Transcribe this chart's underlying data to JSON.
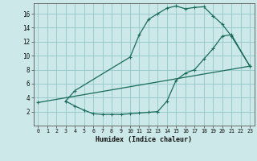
{
  "xlabel": "Humidex (Indice chaleur)",
  "bg_color": "#cce8e8",
  "grid_color": "#99cccc",
  "line_color": "#1a6b5a",
  "xlim": [
    -0.5,
    23.5
  ],
  "ylim": [
    0,
    17.5
  ],
  "xticks": [
    0,
    1,
    2,
    3,
    4,
    5,
    6,
    7,
    8,
    9,
    10,
    11,
    12,
    13,
    14,
    15,
    16,
    17,
    18,
    19,
    20,
    21,
    22,
    23
  ],
  "yticks": [
    2,
    4,
    6,
    8,
    10,
    12,
    14,
    16
  ],
  "line1_x": [
    3,
    4,
    10,
    11,
    12,
    13,
    14,
    15,
    16,
    17,
    18,
    19,
    20,
    21,
    23
  ],
  "line1_y": [
    3.5,
    5.0,
    9.8,
    13.0,
    15.2,
    16.0,
    16.8,
    17.1,
    16.7,
    16.9,
    17.0,
    15.7,
    14.5,
    12.8,
    8.5
  ],
  "line2_x": [
    0,
    23
  ],
  "line2_y": [
    3.3,
    8.5
  ],
  "line3_x": [
    3,
    4,
    5,
    6,
    7,
    8,
    9,
    10,
    11,
    12,
    13,
    14,
    15,
    16,
    17,
    18,
    19,
    20,
    21,
    23
  ],
  "line3_y": [
    3.5,
    2.8,
    2.2,
    1.7,
    1.6,
    1.6,
    1.6,
    1.7,
    1.8,
    1.9,
    2.0,
    3.5,
    6.5,
    7.5,
    8.0,
    9.5,
    11.0,
    12.8,
    13.0,
    8.5
  ]
}
